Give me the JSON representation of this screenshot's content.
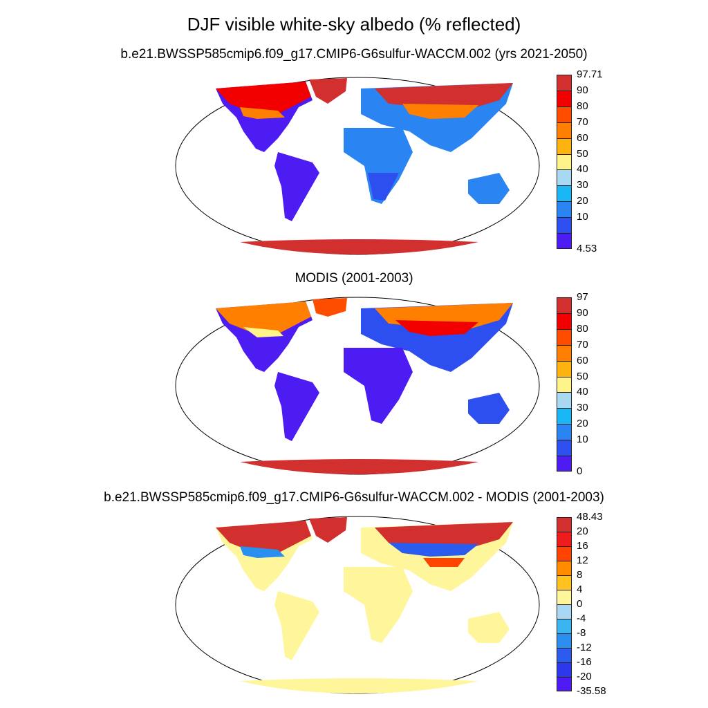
{
  "title": "DJF visible white-sky albedo (% reflected)",
  "panels": [
    {
      "subtitle": "b.e21.BWSSP585cmip6.f09_g17.CMIP6-G6sulfur-WACCM.002 (yrs 2021-2050)",
      "colorbar": {
        "labels": [
          "97.71",
          "90",
          "80",
          "70",
          "60",
          "50",
          "40",
          "30",
          "20",
          "10",
          "4.53"
        ],
        "colors": [
          "#d22f2f",
          "#f20000",
          "#ff4d00",
          "#ff7f00",
          "#ffb310",
          "#fff38a",
          "#a8d8f2",
          "#19b8f5",
          "#2a84f2",
          "#2d4ff0",
          "#4d1cf2"
        ]
      }
    },
    {
      "subtitle": "MODIS (2001-2003)",
      "colorbar": {
        "labels": [
          "97",
          "90",
          "80",
          "70",
          "60",
          "50",
          "40",
          "30",
          "20",
          "10",
          "0"
        ],
        "colors": [
          "#d22f2f",
          "#f20000",
          "#ff4d00",
          "#ff7f00",
          "#ffb310",
          "#fff38a",
          "#a8d8f2",
          "#19b8f5",
          "#2a84f2",
          "#2d4ff0",
          "#4d1cf2"
        ]
      }
    },
    {
      "subtitle": "b.e21.BWSSP585cmip6.f09_g17.CMIP6-G6sulfur-WACCM.002 - MODIS (2001-2003)",
      "colorbar": {
        "labels": [
          "48.43",
          "20",
          "16",
          "12",
          "8",
          "4",
          "0",
          "-4",
          "-8",
          "-12",
          "-16",
          "-20",
          "-35.58"
        ],
        "colors": [
          "#d22f2f",
          "#ee1c1c",
          "#ff4400",
          "#ff8c00",
          "#ffc21f",
          "#fff59b",
          "#a8d8f2",
          "#3cb4f0",
          "#2a8ff0",
          "#2b5cee",
          "#2d38ec",
          "#4d1cf2"
        ]
      }
    }
  ]
}
